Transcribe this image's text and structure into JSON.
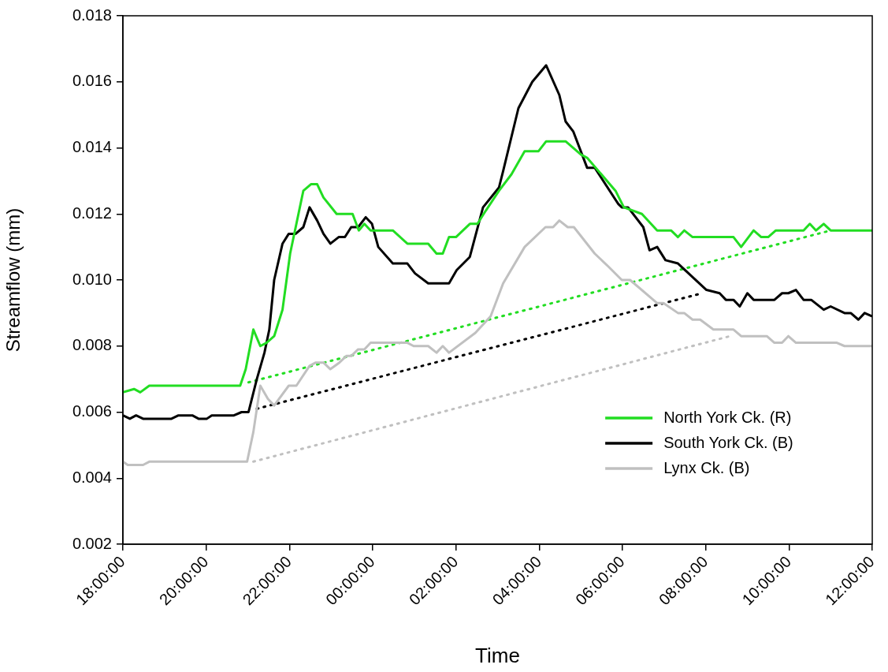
{
  "chart_data": {
    "type": "line",
    "xlabel": "Time",
    "ylabel": "Streamflow (mm)",
    "xlim": [
      "--01-01T18:00",
      "--01-02T12:00"
    ],
    "xticks": [
      {
        "value": "--01-01T18:00",
        "label": "18:00:00"
      },
      {
        "value": "--01-01T20:00",
        "label": "20:00:00"
      },
      {
        "value": "--01-01T22:00",
        "label": "22:00:00"
      },
      {
        "value": "--01-02T00:00",
        "label": "00:00:00"
      },
      {
        "value": "--01-02T02:00",
        "label": "02:00:00"
      },
      {
        "value": "--01-02T04:00",
        "label": "04:00:00"
      },
      {
        "value": "--01-02T06:00",
        "label": "06:00:00"
      },
      {
        "value": "--01-02T08:00",
        "label": "08:00:00"
      },
      {
        "value": "--01-02T10:00",
        "label": "10:00:00"
      },
      {
        "value": "--01-02T12:00",
        "label": "12:00:00"
      }
    ],
    "ylim": [
      0.002,
      0.018
    ],
    "yticks": [
      0.002,
      0.004,
      0.006,
      0.008,
      {
        "value": 0.01,
        "label": "0.010"
      },
      0.012,
      0.014,
      0.016,
      0.018
    ],
    "grid": false,
    "legend": "bottom right",
    "marker": "none",
    "line_style": "solid",
    "series": [
      {
        "name": "North York Ck. (R)",
        "color": "#22dd22",
        "x": [
          "--01-01T18:00",
          "--01-01T18:16",
          "--01-01T18:25",
          "--01-01T18:38",
          "--01-01T20:49",
          "--01-01T20:57",
          "--01-01T21:08",
          "--01-01T21:18",
          "--01-01T21:27",
          "--01-01T21:38",
          "--01-01T21:50",
          "--01-01T22:01",
          "--01-01T22:20",
          "--01-01T22:31",
          "--01-01T22:40",
          "--01-01T22:49",
          "--01-01T23:08",
          "--01-01T23:31",
          "--01-01T23:40",
          "--01-01T23:48",
          "--01-01T23:57",
          "--01-02T00:29",
          "--01-02T00:50",
          "--01-02T01:20",
          "--01-02T01:32",
          "--01-02T01:41",
          "--01-02T01:50",
          "--01-02T02:00",
          "--01-02T02:20",
          "--01-02T02:31",
          "--01-02T02:43",
          "--01-02T03:02",
          "--01-02T03:20",
          "--01-02T03:39",
          "--01-02T03:59",
          "--01-02T04:10",
          "--01-02T04:38",
          "--01-02T05:00",
          "--01-02T05:09",
          "--01-02T05:50",
          "--01-02T06:02",
          "--01-02T06:28",
          "--01-02T06:50",
          "--01-02T07:10",
          "--01-02T07:20",
          "--01-02T07:29",
          "--01-02T07:41",
          "--01-02T08:40",
          "--01-02T08:51",
          "--01-02T09:09",
          "--01-02T09:20",
          "--01-02T09:30",
          "--01-02T09:41",
          "--01-02T10:21",
          "--01-02T10:30",
          "--01-02T10:39",
          "--01-02T10:50",
          "--01-02T11:00",
          "--01-02T12:00"
        ],
        "values": [
          0.0066,
          0.0067,
          0.0066,
          0.0068,
          0.0068,
          0.0073,
          0.0085,
          0.008,
          0.0081,
          0.0083,
          0.0091,
          0.0108,
          0.0127,
          0.0129,
          0.0129,
          0.0125,
          0.012,
          0.012,
          0.0115,
          0.0117,
          0.0115,
          0.0115,
          0.0111,
          0.0111,
          0.0108,
          0.0108,
          0.0113,
          0.0113,
          0.0117,
          0.0117,
          0.0121,
          0.0127,
          0.0132,
          0.0139,
          0.0139,
          0.0142,
          0.0142,
          0.0138,
          0.0137,
          0.0127,
          0.0122,
          0.012,
          0.0115,
          0.0115,
          0.0113,
          0.0115,
          0.0113,
          0.0113,
          0.011,
          0.0115,
          0.0113,
          0.0113,
          0.0115,
          0.0115,
          0.0117,
          0.0115,
          0.0117,
          0.0115,
          0.0115
        ]
      },
      {
        "name": "South York Ck. (B)",
        "color": "#000000",
        "x": [
          "--01-01T18:00",
          "--01-01T18:10",
          "--01-01T18:19",
          "--01-01T18:29",
          "--01-01T18:38",
          "--01-01T19:10",
          "--01-01T19:20",
          "--01-01T19:40",
          "--01-01T19:49",
          "--01-01T20:01",
          "--01-01T20:08",
          "--01-01T20:40",
          "--01-01T20:51",
          "--01-01T21:01",
          "--01-01T21:13",
          "--01-01T21:24",
          "--01-01T21:31",
          "--01-01T21:38",
          "--01-01T21:50",
          "--01-01T21:59",
          "--01-01T22:09",
          "--01-01T22:20",
          "--01-01T22:29",
          "--01-01T22:40",
          "--01-01T22:49",
          "--01-01T22:59",
          "--01-01T23:11",
          "--01-01T23:20",
          "--01-01T23:29",
          "--01-01T23:39",
          "--01-01T23:50",
          "--01-01T23:59",
          "--01-02T00:08",
          "--01-02T00:29",
          "--01-02T00:50",
          "--01-02T01:01",
          "--01-02T01:20",
          "--01-02T01:50",
          "--01-02T02:01",
          "--01-02T02:20",
          "--01-02T02:39",
          "--01-02T03:02",
          "--01-02T03:08",
          "--01-02T03:30",
          "--01-02T03:50",
          "--01-02T04:10",
          "--01-02T04:29",
          "--01-02T04:38",
          "--01-02T04:49",
          "--01-02T05:09",
          "--01-02T05:20",
          "--01-02T05:54",
          "--01-02T05:59",
          "--01-02T06:08",
          "--01-02T06:30",
          "--01-02T06:39",
          "--01-02T06:50",
          "--01-02T07:02",
          "--01-02T07:20",
          "--01-02T08:01",
          "--01-02T08:20",
          "--01-02T08:29",
          "--01-02T08:40",
          "--01-02T08:49",
          "--01-02T09:00",
          "--01-02T09:09",
          "--01-02T09:39",
          "--01-02T09:50",
          "--01-02T09:59",
          "--01-02T10:10",
          "--01-02T10:21",
          "--01-02T10:32",
          "--01-02T10:50",
          "--01-02T11:00",
          "--01-02T11:20",
          "--01-02T11:29",
          "--01-02T11:40",
          "--01-02T11:49",
          "--01-02T12:00"
        ],
        "values": [
          0.0059,
          0.0058,
          0.0059,
          0.0058,
          0.0058,
          0.0058,
          0.0059,
          0.0059,
          0.0058,
          0.0058,
          0.0059,
          0.0059,
          0.006,
          0.006,
          0.007,
          0.0078,
          0.0085,
          0.01,
          0.0111,
          0.0114,
          0.0114,
          0.0116,
          0.0122,
          0.0118,
          0.0114,
          0.0111,
          0.0113,
          0.0113,
          0.0116,
          0.0116,
          0.0119,
          0.0117,
          0.011,
          0.0105,
          0.0105,
          0.0102,
          0.0099,
          0.0099,
          0.0103,
          0.0107,
          0.0122,
          0.0128,
          0.0133,
          0.0152,
          0.016,
          0.0165,
          0.0156,
          0.0148,
          0.0145,
          0.0134,
          0.0134,
          0.0123,
          0.0122,
          0.0122,
          0.0116,
          0.0109,
          0.011,
          0.0106,
          0.0105,
          0.0097,
          0.0096,
          0.0094,
          0.0094,
          0.0092,
          0.0096,
          0.0094,
          0.0094,
          0.0096,
          0.0096,
          0.0097,
          0.0094,
          0.0094,
          0.0091,
          0.0092,
          0.009,
          0.009,
          0.0088,
          0.009,
          0.0089
        ]
      },
      {
        "name": "Lynx Ck. (B)",
        "color": "#c0c0c0",
        "x": [
          "--01-01T18:00",
          "--01-01T18:07",
          "--01-01T18:29",
          "--01-01T18:38",
          "--01-01T20:59",
          "--01-01T21:08",
          "--01-01T21:18",
          "--01-01T21:29",
          "--01-01T21:38",
          "--01-01T21:59",
          "--01-01T22:10",
          "--01-01T22:29",
          "--01-01T22:38",
          "--01-01T22:49",
          "--01-01T22:59",
          "--01-01T23:12",
          "--01-01T23:22",
          "--01-01T23:29",
          "--01-01T23:39",
          "--01-01T23:48",
          "--01-01T23:57",
          "--01-02T00:16",
          "--01-02T00:50",
          "--01-02T00:59",
          "--01-02T01:20",
          "--01-02T01:32",
          "--01-02T01:41",
          "--01-02T01:50",
          "--01-02T02:28",
          "--01-02T02:50",
          "--01-02T03:08",
          "--01-02T03:39",
          "--01-02T04:09",
          "--01-02T04:20",
          "--01-02T04:29",
          "--01-02T04:41",
          "--01-02T04:50",
          "--01-02T05:20",
          "--01-02T05:40",
          "--01-02T05:59",
          "--01-02T06:11",
          "--01-02T06:50",
          "--01-02T06:59",
          "--01-02T07:20",
          "--01-02T07:29",
          "--01-02T07:41",
          "--01-02T07:52",
          "--01-02T08:11",
          "--01-02T08:40",
          "--01-02T08:51",
          "--01-02T09:28",
          "--01-02T09:39",
          "--01-02T09:50",
          "--01-02T09:59",
          "--01-02T10:10",
          "--01-02T11:09",
          "--01-02T11:20",
          "--01-02T12:00"
        ],
        "values": [
          0.0045,
          0.0044,
          0.0044,
          0.0045,
          0.0045,
          0.0054,
          0.0068,
          0.0064,
          0.0062,
          0.0068,
          0.0068,
          0.0074,
          0.0075,
          0.0075,
          0.0073,
          0.0075,
          0.0077,
          0.0077,
          0.0079,
          0.0079,
          0.0081,
          0.0081,
          0.0081,
          0.008,
          0.008,
          0.0078,
          0.008,
          0.0078,
          0.0084,
          0.0089,
          0.0099,
          0.011,
          0.0116,
          0.0116,
          0.0118,
          0.0116,
          0.0116,
          0.0108,
          0.0104,
          0.01,
          0.01,
          0.0093,
          0.0093,
          0.009,
          0.009,
          0.0088,
          0.0088,
          0.0085,
          0.0085,
          0.0083,
          0.0083,
          0.0081,
          0.0081,
          0.0083,
          0.0081,
          0.0081,
          0.008,
          0.008
        ]
      },
      {
        "color": "#22dd22",
        "line_style": "dotted",
        "x": [
          "--01-01T21:01",
          "--01-02T11:00"
        ],
        "values": [
          0.0069,
          0.0115
        ]
      },
      {
        "color": "#000000",
        "line_style": "dotted",
        "x": [
          "--01-01T21:13",
          "--01-02T07:55"
        ],
        "values": [
          0.0061,
          0.0096
        ]
      },
      {
        "color": "#c0c0c0",
        "line_style": "dotted",
        "x": [
          "--01-01T21:08",
          "--01-02T08:35"
        ],
        "values": [
          0.0045,
          0.0083
        ]
      }
    ]
  }
}
